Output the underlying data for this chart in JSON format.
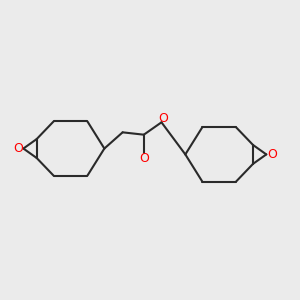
{
  "background_color": "#ebebeb",
  "bond_color": "#2a2a2a",
  "oxygen_color": "#ff0000",
  "line_width": 1.5,
  "figsize": [
    3.0,
    3.0
  ],
  "dpi": 100,
  "xlim": [
    0,
    10
  ],
  "ylim": [
    2.0,
    8.0
  ]
}
